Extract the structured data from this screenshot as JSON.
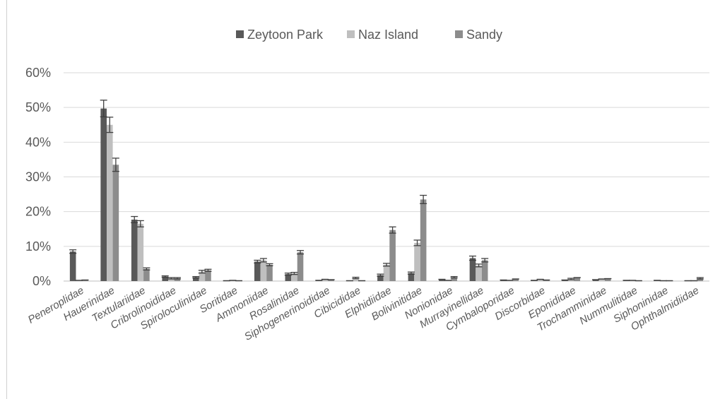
{
  "chart_data": {
    "type": "bar",
    "title": "",
    "xlabel": "",
    "ylabel": "",
    "ylim": [
      0,
      0.6
    ],
    "yticks": [
      "0%",
      "10%",
      "20%",
      "30%",
      "40%",
      "50%",
      "60%"
    ],
    "grid": true,
    "legend_position": "top",
    "categories": [
      "Peneroplidae",
      "Hauerinidae",
      "Textulariidae",
      "Cribrolinoididae",
      "Spiroloculinidae",
      "Soritidae",
      "Ammoniidae",
      "Rosalinidae",
      "Siphogenerinoididae",
      "Cibicididae",
      "Elphidiidae",
      "Bolivinitidae",
      "Nonionidae",
      "Murrayinellidae",
      "Cymbaloporidae",
      "Discorbidae",
      "Eponididae",
      "Trochamminidae",
      "Nummulitidae",
      "Siphoninidae",
      "Ophthalmidiidae"
    ],
    "series": [
      {
        "name": "Zeytoon Park",
        "color": "#595959",
        "values": [
          0.085,
          0.497,
          0.177,
          0.013,
          0.011,
          0.001,
          0.056,
          0.02,
          0.002,
          0.001,
          0.017,
          0.023,
          0.005,
          0.066,
          0.003,
          0.002,
          0.003,
          0.004,
          0.002,
          0.002,
          0.001
        ],
        "errors": [
          0.005,
          0.024,
          0.009,
          0.002,
          0.002,
          0.0,
          0.004,
          0.003,
          0.0,
          0.0,
          0.003,
          0.003,
          0.0,
          0.006,
          0.0,
          0.0,
          0.0,
          0.0,
          0.0,
          0.0,
          0.0
        ]
      },
      {
        "name": "Naz Island",
        "color": "#bfbfbf",
        "values": [
          0.002,
          0.45,
          0.165,
          0.008,
          0.027,
          0.002,
          0.06,
          0.022,
          0.005,
          0.009,
          0.047,
          0.11,
          0.002,
          0.045,
          0.002,
          0.005,
          0.006,
          0.006,
          0.002,
          0.001,
          0.001
        ],
        "errors": [
          0.0,
          0.022,
          0.009,
          0.002,
          0.004,
          0.0,
          0.005,
          0.003,
          0.0,
          0.002,
          0.004,
          0.008,
          0.0,
          0.004,
          0.0,
          0.0,
          0.002,
          0.0,
          0.0,
          0.0,
          0.0
        ]
      },
      {
        "name": "Sandy",
        "color": "#8c8c8c",
        "values": [
          0.003,
          0.335,
          0.035,
          0.008,
          0.031,
          0.001,
          0.047,
          0.083,
          0.004,
          0.001,
          0.147,
          0.235,
          0.011,
          0.06,
          0.006,
          0.003,
          0.01,
          0.007,
          0.001,
          0.001,
          0.008
        ],
        "errors": [
          0.0,
          0.019,
          0.003,
          0.002,
          0.003,
          0.0,
          0.003,
          0.005,
          0.0,
          0.0,
          0.009,
          0.012,
          0.002,
          0.005,
          0.0,
          0.0,
          0.0,
          0.0,
          0.0,
          0.0,
          0.002
        ]
      }
    ]
  }
}
